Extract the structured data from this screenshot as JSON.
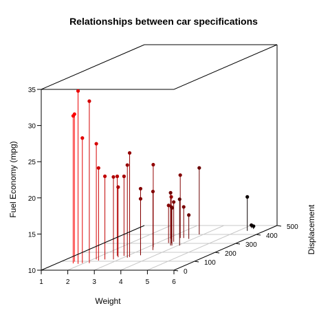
{
  "chart_data": {
    "type": "scatter",
    "variant": "3d-scatter-with-drop-lines",
    "title": "Relationships between car specifications",
    "xlabel": "Weight",
    "ylabel": "Displacement",
    "zlabel": "Fuel Economy (mpg)",
    "xlim": [
      1,
      6
    ],
    "ylim": [
      0,
      500
    ],
    "zlim": [
      10,
      35
    ],
    "xticks": [
      1,
      2,
      3,
      4,
      5,
      6
    ],
    "yticks": [
      0,
      100,
      200,
      300,
      400,
      500
    ],
    "zticks": [
      10,
      15,
      20,
      25,
      30,
      35
    ],
    "grid": "floor",
    "color_by": "x",
    "color_range": [
      "#ff0000",
      "#000000"
    ],
    "points": [
      {
        "x": 2.2,
        "y": 78.7,
        "z": 32.4
      },
      {
        "x": 1.615,
        "y": 75.7,
        "z": 30.4
      },
      {
        "x": 1.835,
        "y": 71.1,
        "z": 33.9
      },
      {
        "x": 1.513,
        "y": 95.1,
        "z": 30.4
      },
      {
        "x": 1.935,
        "y": 79.0,
        "z": 27.3
      },
      {
        "x": 2.14,
        "y": 120.3,
        "z": 26.0
      },
      {
        "x": 2.32,
        "y": 108.0,
        "z": 22.8
      },
      {
        "x": 2.465,
        "y": 120.1,
        "z": 21.5
      },
      {
        "x": 2.62,
        "y": 160.0,
        "z": 21.0
      },
      {
        "x": 2.875,
        "y": 160.0,
        "z": 21.0
      },
      {
        "x": 2.77,
        "y": 145.0,
        "z": 19.7
      },
      {
        "x": 3.19,
        "y": 146.7,
        "z": 24.4
      },
      {
        "x": 3.215,
        "y": 258.0,
        "z": 21.4
      },
      {
        "x": 3.15,
        "y": 140.8,
        "z": 22.8
      },
      {
        "x": 3.44,
        "y": 167.6,
        "z": 19.2
      },
      {
        "x": 3.44,
        "y": 167.6,
        "z": 17.8
      },
      {
        "x": 3.44,
        "y": 360.0,
        "z": 18.7
      },
      {
        "x": 3.46,
        "y": 225.0,
        "z": 18.1
      },
      {
        "x": 3.52,
        "y": 318.0,
        "z": 15.5
      },
      {
        "x": 3.435,
        "y": 304.0,
        "z": 15.2
      },
      {
        "x": 3.57,
        "y": 360.0,
        "z": 14.3
      },
      {
        "x": 3.57,
        "y": 301.0,
        "z": 15.0
      },
      {
        "x": 3.73,
        "y": 275.8,
        "z": 17.3
      },
      {
        "x": 3.78,
        "y": 275.8,
        "z": 15.2
      },
      {
        "x": 3.845,
        "y": 400.0,
        "z": 19.2
      },
      {
        "x": 3.84,
        "y": 350.0,
        "z": 13.3
      },
      {
        "x": 4.07,
        "y": 275.8,
        "z": 16.4
      },
      {
        "x": 5.25,
        "y": 472.0,
        "z": 10.4
      },
      {
        "x": 5.424,
        "y": 460.0,
        "z": 10.4
      },
      {
        "x": 5.345,
        "y": 440.0,
        "z": 14.7
      },
      {
        "x": 3.17,
        "y": 351.0,
        "z": 15.8
      },
      {
        "x": 2.78,
        "y": 121.0,
        "z": 21.4
      }
    ]
  }
}
